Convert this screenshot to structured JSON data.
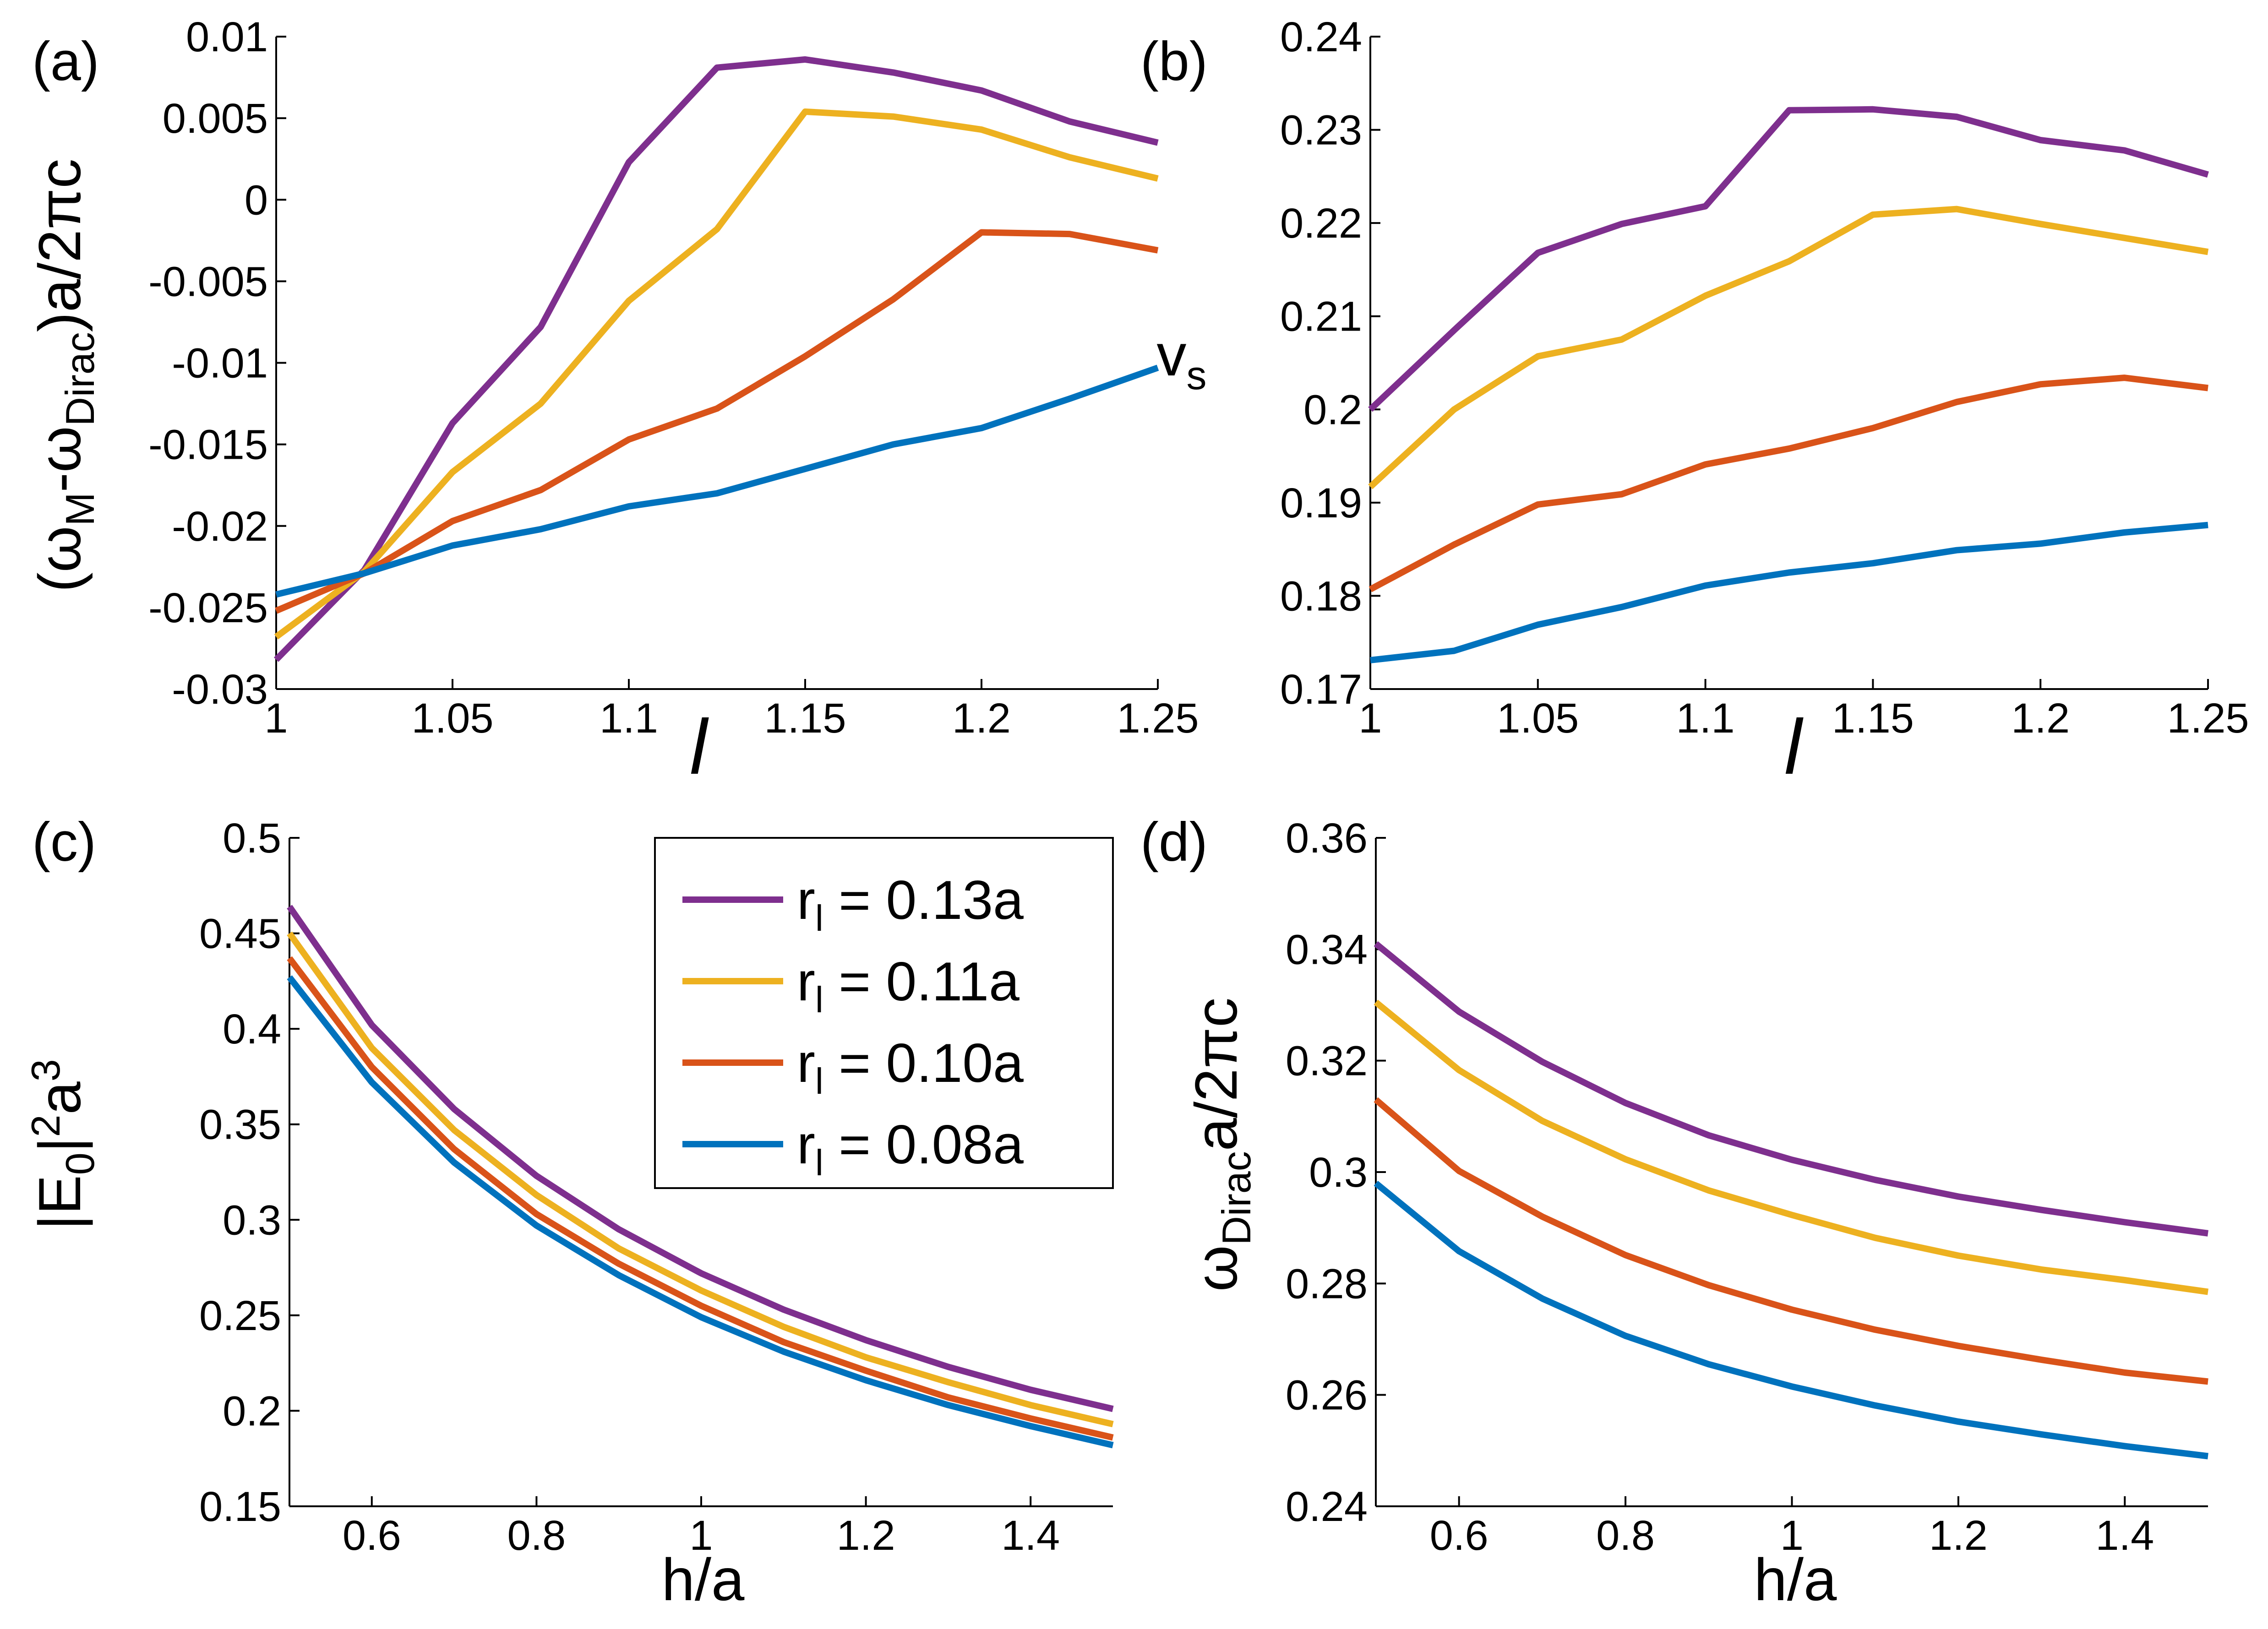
{
  "chart_data": [
    {
      "panel_label": "(a)",
      "type": "line",
      "xlabel": "l",
      "ylabel_parts": [
        "(ω",
        "M",
        "-ω",
        "Dirac",
        ")a/2πc"
      ],
      "xlim": [
        1,
        1.25
      ],
      "ylim": [
        -0.03,
        0.01
      ],
      "xticks": [
        1,
        1.05,
        1.1,
        1.15,
        1.2,
        1.25
      ],
      "xtick_labels": [
        "1",
        "1.05",
        "1.1",
        "1.15",
        "1.2",
        "1.25"
      ],
      "yticks": [
        0.01,
        0.005,
        0,
        -0.005,
        -0.01,
        -0.015,
        -0.02,
        -0.025,
        -0.03
      ],
      "ytick_labels": [
        "0.01",
        "0.005",
        "0",
        "-0.005",
        "-0.01",
        "-0.015",
        "-0.02",
        "-0.025",
        "-0.03"
      ],
      "x": [
        1,
        1.025,
        1.05,
        1.075,
        1.1,
        1.125,
        1.15,
        1.175,
        1.2,
        1.225,
        1.25
      ],
      "series": [
        {
          "color": "#7E2F8E",
          "values": [
            -0.0282,
            -0.0227,
            -0.0137,
            -0.0078,
            0.0023,
            0.0081,
            0.0086,
            0.0078,
            0.0067,
            0.0048,
            0.0035
          ]
        },
        {
          "color": "#EDB120",
          "values": [
            -0.0268,
            -0.0228,
            -0.0167,
            -0.0125,
            -0.0062,
            -0.0018,
            0.0054,
            0.0051,
            0.0043,
            0.0026,
            0.0013
          ]
        },
        {
          "color": "#D95319",
          "values": [
            -0.0252,
            -0.0229,
            -0.0197,
            -0.0178,
            -0.0147,
            -0.0128,
            -0.0096,
            -0.0061,
            -0.002,
            -0.0021,
            -0.0031
          ]
        },
        {
          "color": "#0072BD",
          "values": [
            -0.0242,
            -0.0229,
            -0.0212,
            -0.0202,
            -0.0188,
            -0.018,
            -0.0165,
            -0.015,
            -0.014,
            -0.0122,
            -0.0103
          ]
        }
      ]
    },
    {
      "panel_label": "(b)",
      "type": "line",
      "xlabel": "l",
      "ylabel_parts": [
        "v",
        "s"
      ],
      "xlim": [
        1,
        1.25
      ],
      "ylim": [
        0.17,
        0.24
      ],
      "xticks": [
        1,
        1.05,
        1.1,
        1.15,
        1.2,
        1.25
      ],
      "xtick_labels": [
        "1",
        "1.05",
        "1.1",
        "1.15",
        "1.2",
        "1.25"
      ],
      "yticks": [
        0.24,
        0.23,
        0.22,
        0.21,
        0.2,
        0.19,
        0.18,
        0.17
      ],
      "ytick_labels": [
        "0.24",
        "0.23",
        "0.22",
        "0.21",
        "0.2",
        "0.19",
        "0.18",
        "0.17"
      ],
      "x": [
        1,
        1.025,
        1.05,
        1.075,
        1.1,
        1.125,
        1.15,
        1.175,
        1.2,
        1.225,
        1.25
      ],
      "series": [
        {
          "color": "#7E2F8E",
          "values": [
            0.2,
            0.2085,
            0.2168,
            0.2199,
            0.2218,
            0.2321,
            0.2322,
            0.2314,
            0.2289,
            0.2278,
            0.2252
          ]
        },
        {
          "color": "#EDB120",
          "values": [
            0.1917,
            0.2,
            0.2057,
            0.2075,
            0.2122,
            0.2159,
            0.2209,
            0.2215,
            0.2199,
            0.2184,
            0.2169
          ]
        },
        {
          "color": "#D95319",
          "values": [
            0.1807,
            0.1855,
            0.1898,
            0.1909,
            0.1941,
            0.1958,
            0.198,
            0.2008,
            0.2027,
            0.2034,
            0.2023
          ]
        },
        {
          "color": "#0072BD",
          "values": [
            0.1731,
            0.1741,
            0.1769,
            0.1788,
            0.1811,
            0.1825,
            0.1835,
            0.1849,
            0.1856,
            0.1868,
            0.1876
          ]
        }
      ]
    },
    {
      "panel_label": "(c)",
      "type": "line",
      "xlabel": "h/a",
      "ylabel_parts": [
        "|E",
        "0",
        "|",
        "2",
        "a",
        "3"
      ],
      "xlim": [
        0.5,
        1.5
      ],
      "ylim": [
        0.15,
        0.5
      ],
      "xticks": [
        0.6,
        0.8,
        1,
        1.2,
        1.4
      ],
      "xtick_labels": [
        "0.6",
        "0.8",
        "1",
        "1.2",
        "1.4"
      ],
      "yticks": [
        0.5,
        0.45,
        0.4,
        0.35,
        0.3,
        0.25,
        0.2,
        0.15
      ],
      "ytick_labels": [
        "0.5",
        "0.45",
        "0.4",
        "0.35",
        "0.3",
        "0.25",
        "0.2",
        "0.15"
      ],
      "x": [
        0.5,
        0.6,
        0.7,
        0.8,
        0.9,
        1.0,
        1.1,
        1.2,
        1.3,
        1.4,
        1.5
      ],
      "series": [
        {
          "color": "#7E2F8E",
          "values": [
            0.464,
            0.402,
            0.358,
            0.323,
            0.295,
            0.272,
            0.253,
            0.237,
            0.223,
            0.211,
            0.201
          ]
        },
        {
          "color": "#EDB120",
          "values": [
            0.45,
            0.39,
            0.347,
            0.313,
            0.285,
            0.263,
            0.244,
            0.228,
            0.215,
            0.203,
            0.193
          ]
        },
        {
          "color": "#D95319",
          "values": [
            0.437,
            0.38,
            0.337,
            0.303,
            0.277,
            0.255,
            0.236,
            0.221,
            0.207,
            0.196,
            0.186
          ]
        },
        {
          "color": "#0072BD",
          "values": [
            0.427,
            0.372,
            0.33,
            0.297,
            0.271,
            0.249,
            0.231,
            0.216,
            0.203,
            0.192,
            0.182
          ]
        }
      ]
    },
    {
      "panel_label": "(d)",
      "type": "line",
      "xlabel": "h/a",
      "ylabel_parts": [
        "ω",
        "Dirac",
        "a/2πc"
      ],
      "xlim": [
        0.5,
        1.5
      ],
      "ylim": [
        0.24,
        0.36
      ],
      "xticks": [
        0.6,
        0.8,
        1,
        1.2,
        1.4
      ],
      "xtick_labels": [
        "0.6",
        "0.8",
        "1",
        "1.2",
        "1.4"
      ],
      "yticks": [
        0.36,
        0.34,
        0.32,
        0.3,
        0.28,
        0.26,
        0.24
      ],
      "ytick_labels": [
        "0.36",
        "0.34",
        "0.32",
        "0.3",
        "0.28",
        "0.26",
        "0.24"
      ],
      "x": [
        0.5,
        0.6,
        0.7,
        0.8,
        0.9,
        1.0,
        1.1,
        1.2,
        1.3,
        1.4,
        1.5
      ],
      "series": [
        {
          "color": "#7E2F8E",
          "values": [
            0.341,
            0.3288,
            0.3198,
            0.3124,
            0.3066,
            0.3022,
            0.2986,
            0.2956,
            0.2932,
            0.291,
            0.289
          ]
        },
        {
          "color": "#EDB120",
          "values": [
            0.3305,
            0.3183,
            0.3092,
            0.3023,
            0.2967,
            0.2923,
            0.2882,
            0.285,
            0.2825,
            0.2806,
            0.2785
          ]
        },
        {
          "color": "#D95319",
          "values": [
            0.313,
            0.3002,
            0.292,
            0.2851,
            0.2797,
            0.2753,
            0.2717,
            0.2688,
            0.2663,
            0.264,
            0.2624
          ]
        },
        {
          "color": "#0072BD",
          "values": [
            0.298,
            0.2858,
            0.2773,
            0.2706,
            0.2655,
            0.2615,
            0.2581,
            0.2552,
            0.2529,
            0.2508,
            0.249
          ]
        }
      ]
    }
  ],
  "legend": {
    "entries": [
      {
        "symbol": "r",
        "sub": "l",
        "text": " = 0.13a",
        "color": "#7E2F8E"
      },
      {
        "symbol": "r",
        "sub": "l",
        "text": " = 0.11a",
        "color": "#EDB120"
      },
      {
        "symbol": "r",
        "sub": "l",
        "text": " = 0.10a",
        "color": "#D95319"
      },
      {
        "symbol": "r",
        "sub": "l",
        "text": " = 0.08a",
        "color": "#0072BD"
      }
    ]
  }
}
